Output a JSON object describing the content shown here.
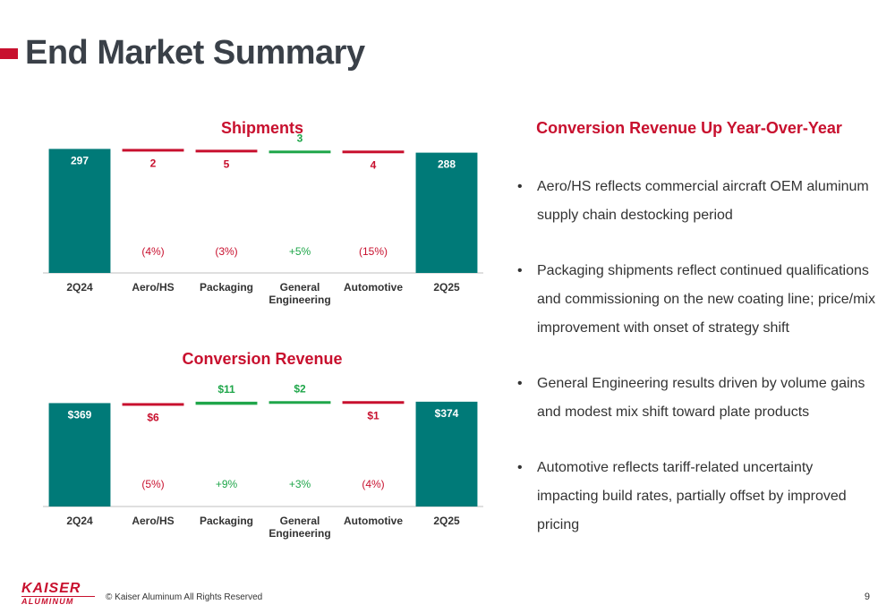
{
  "page": {
    "title": "End Market Summary",
    "number": "9",
    "copyright": "© Kaiser Aluminum All Rights Reserved"
  },
  "logo": {
    "top": "KAISER",
    "bottom": "ALUMINUM"
  },
  "colors": {
    "accent": "#c8102e",
    "teal": "#007a78",
    "green": "#1fa64a",
    "red": "#c8102e"
  },
  "chart_data": [
    {
      "type": "bar",
      "subtype": "waterfall",
      "title": "Shipments",
      "categories": [
        "2Q24",
        "Aero/HS",
        "Packaging",
        "General Engineering",
        "Automotive",
        "2Q25"
      ],
      "values": [
        297,
        -2,
        -5,
        3,
        -4,
        288
      ],
      "value_labels": [
        "297",
        "2",
        "5",
        "3",
        "4",
        "288"
      ],
      "pct_labels": [
        "",
        "(4%)",
        "(3%)",
        "+5%",
        "(15%)",
        ""
      ],
      "ylim": [
        0,
        300
      ]
    },
    {
      "type": "bar",
      "subtype": "waterfall",
      "title": "Conversion Revenue",
      "categories": [
        "2Q24",
        "Aero/HS",
        "Packaging",
        "General Engineering",
        "Automotive",
        "2Q25"
      ],
      "values": [
        369,
        -6,
        11,
        2,
        -1,
        374
      ],
      "value_labels": [
        "$369",
        "$6",
        "$11",
        "$2",
        "$1",
        "$374"
      ],
      "pct_labels": [
        "",
        "(5%)",
        "+9%",
        "+3%",
        "(4%)",
        ""
      ],
      "ylim": [
        0,
        380
      ]
    }
  ],
  "summary": {
    "title": "Conversion Revenue Up Year-Over-Year",
    "bullets": [
      "Aero/HS reflects commercial aircraft OEM aluminum supply chain destocking period",
      "Packaging shipments reflect continued qualifications and commissioning on the new coating line; price/mix improvement with onset of strategy shift",
      "General Engineering results driven by volume gains and modest mix shift toward plate products",
      "Automotive reflects tariff-related uncertainty impacting build rates, partially offset by improved pricing"
    ]
  }
}
